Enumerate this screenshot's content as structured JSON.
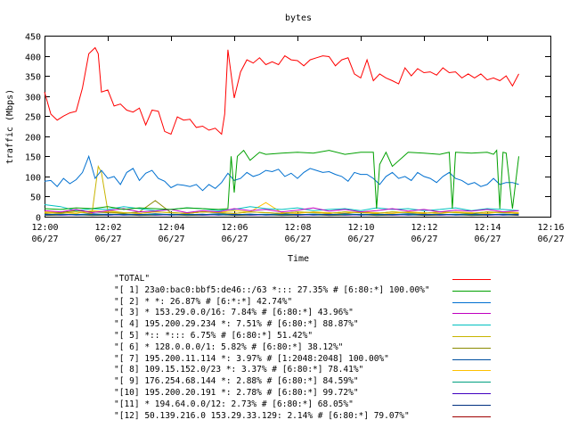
{
  "chart_data": {
    "type": "line",
    "title": "bytes",
    "xlabel": "Time",
    "ylabel": "traffic (Mbps)",
    "ylim": [
      0,
      450
    ],
    "yticks": [
      0,
      50,
      100,
      150,
      200,
      250,
      300,
      350,
      400,
      450
    ],
    "xlim": [
      0,
      16
    ],
    "xticks": [
      {
        "value": 0,
        "time": "12:00",
        "date": "06/27"
      },
      {
        "value": 2,
        "time": "12:02",
        "date": "06/27"
      },
      {
        "value": 4,
        "time": "12:04",
        "date": "06/27"
      },
      {
        "value": 6,
        "time": "12:06",
        "date": "06/27"
      },
      {
        "value": 8,
        "time": "12:08",
        "date": "06/27"
      },
      {
        "value": 10,
        "time": "12:10",
        "date": "06/27"
      },
      {
        "value": 12,
        "time": "12:12",
        "date": "06/27"
      },
      {
        "value": 14,
        "time": "12:14",
        "date": "06/27"
      },
      {
        "value": 16,
        "time": "12:16",
        "date": "06/27"
      }
    ],
    "grid": false,
    "legend_position": "bottom",
    "series": [
      {
        "name": "\"TOTAL\"",
        "color": "#ff0000",
        "x": [
          0,
          0.2,
          0.4,
          0.6,
          0.8,
          1.0,
          1.2,
          1.4,
          1.6,
          1.7,
          1.8,
          2.0,
          2.2,
          2.4,
          2.6,
          2.8,
          3.0,
          3.2,
          3.4,
          3.6,
          3.8,
          4.0,
          4.2,
          4.4,
          4.6,
          4.8,
          5.0,
          5.2,
          5.4,
          5.6,
          5.7,
          5.8,
          6.0,
          6.2,
          6.4,
          6.6,
          6.8,
          7.0,
          7.2,
          7.4,
          7.6,
          7.8,
          8.0,
          8.2,
          8.4,
          8.6,
          8.8,
          9.0,
          9.2,
          9.4,
          9.6,
          9.8,
          10.0,
          10.2,
          10.4,
          10.6,
          10.8,
          11.0,
          11.2,
          11.4,
          11.6,
          11.8,
          12.0,
          12.2,
          12.4,
          12.6,
          12.8,
          13.0,
          13.2,
          13.4,
          13.6,
          13.8,
          14.0,
          14.2,
          14.4,
          14.6,
          14.8,
          15.0
        ],
        "values": [
          310,
          255,
          240,
          250,
          258,
          262,
          320,
          405,
          420,
          405,
          310,
          315,
          275,
          280,
          265,
          260,
          270,
          228,
          265,
          262,
          212,
          205,
          248,
          240,
          242,
          222,
          225,
          215,
          220,
          205,
          255,
          415,
          295,
          360,
          390,
          382,
          395,
          378,
          385,
          378,
          400,
          390,
          388,
          375,
          390,
          395,
          400,
          398,
          375,
          390,
          395,
          355,
          345,
          390,
          338,
          355,
          345,
          338,
          330,
          370,
          350,
          368,
          358,
          360,
          352,
          370,
          358,
          360,
          345,
          355,
          345,
          355,
          340,
          345,
          338,
          350,
          325,
          355
        ]
      },
      {
        "name": "\"[ 1] 23a0:bac0:bbf5:de46::/63 *::: 27.35% # [6:80:*] 100.00%\"",
        "color": "#00a000",
        "x": [
          0,
          0.5,
          1,
          1.5,
          2,
          2.5,
          3,
          3.5,
          4,
          4.5,
          5,
          5.5,
          5.8,
          5.9,
          6.0,
          6.1,
          6.3,
          6.5,
          6.8,
          7,
          7.5,
          8,
          8.5,
          9,
          9.5,
          10,
          10.4,
          10.5,
          10.6,
          10.8,
          11,
          11.5,
          12,
          12.5,
          12.8,
          12.9,
          13.0,
          13.5,
          14,
          14.2,
          14.3,
          14.4,
          14.5,
          14.6,
          14.8,
          15
        ],
        "values": [
          20,
          18,
          22,
          20,
          25,
          18,
          22,
          20,
          18,
          22,
          20,
          18,
          20,
          150,
          60,
          150,
          165,
          140,
          160,
          155,
          158,
          160,
          158,
          165,
          155,
          160,
          160,
          20,
          130,
          160,
          125,
          160,
          158,
          155,
          160,
          20,
          160,
          158,
          160,
          155,
          165,
          20,
          160,
          158,
          20,
          150
        ]
      },
      {
        "name": "\"[ 2] * *: 26.87% # [6:*:*] 42.74%\"",
        "color": "#0070d0",
        "x": [
          0,
          0.2,
          0.4,
          0.6,
          0.8,
          1.0,
          1.2,
          1.4,
          1.6,
          1.8,
          2.0,
          2.2,
          2.4,
          2.6,
          2.8,
          3.0,
          3.2,
          3.4,
          3.6,
          3.8,
          4.0,
          4.2,
          4.4,
          4.6,
          4.8,
          5.0,
          5.2,
          5.4,
          5.6,
          5.8,
          6.0,
          6.2,
          6.4,
          6.6,
          6.8,
          7.0,
          7.2,
          7.4,
          7.6,
          7.8,
          8.0,
          8.2,
          8.4,
          8.6,
          8.8,
          9.0,
          9.2,
          9.4,
          9.6,
          9.8,
          10.0,
          10.2,
          10.4,
          10.6,
          10.8,
          11.0,
          11.2,
          11.4,
          11.6,
          11.8,
          12.0,
          12.2,
          12.4,
          12.6,
          12.8,
          13.0,
          13.2,
          13.4,
          13.6,
          13.8,
          14.0,
          14.2,
          14.4,
          14.6,
          14.8,
          15.0
        ],
        "values": [
          88,
          90,
          75,
          95,
          82,
          92,
          110,
          150,
          95,
          115,
          95,
          100,
          80,
          110,
          120,
          90,
          108,
          115,
          95,
          88,
          72,
          80,
          78,
          75,
          80,
          65,
          80,
          70,
          85,
          108,
          90,
          95,
          110,
          100,
          105,
          115,
          112,
          118,
          100,
          108,
          95,
          110,
          120,
          115,
          110,
          112,
          105,
          100,
          88,
          110,
          105,
          105,
          95,
          80,
          100,
          110,
          95,
          100,
          90,
          110,
          100,
          95,
          85,
          100,
          110,
          95,
          90,
          80,
          85,
          75,
          80,
          95,
          80,
          85,
          85,
          80
        ]
      },
      {
        "name": "\"[ 3] * 153.29.0.0/16: 7.84% # [6:80:*] 43.96%\"",
        "color": "#c000c0",
        "x": [
          0,
          0.5,
          1,
          1.5,
          2,
          2.5,
          3,
          3.5,
          4,
          4.5,
          5,
          5.5,
          6,
          6.5,
          7,
          7.5,
          8,
          8.5,
          9,
          9.5,
          10,
          10.5,
          11,
          11.5,
          12,
          12.5,
          13,
          13.5,
          14,
          14.5,
          15
        ],
        "values": [
          15,
          12,
          18,
          10,
          15,
          20,
          12,
          14,
          18,
          10,
          15,
          12,
          20,
          15,
          18,
          12,
          16,
          22,
          14,
          18,
          12,
          15,
          20,
          14,
          18,
          12,
          16,
          14,
          18,
          12,
          15
        ]
      },
      {
        "name": "\"[ 4] 195.200.29.234 *: 7.51% # [6:80:*] 88.87%\"",
        "color": "#00c0c0",
        "x": [
          0,
          0.5,
          1,
          1.5,
          2,
          2.5,
          3,
          3.5,
          4,
          4.5,
          5,
          5.5,
          6,
          6.5,
          7,
          7.5,
          8,
          8.5,
          9,
          9.5,
          10,
          10.5,
          11,
          11.5,
          12,
          12.5,
          13,
          13.5,
          14,
          14.5,
          15
        ],
        "values": [
          30,
          25,
          15,
          20,
          18,
          25,
          20,
          15,
          18,
          22,
          20,
          15,
          18,
          25,
          20,
          18,
          22,
          15,
          18,
          20,
          15,
          22,
          18,
          20,
          15,
          18,
          22,
          15,
          20,
          18,
          15
        ]
      },
      {
        "name": "\"[ 5] *:: *::: 6.75% # [6:80:*] 51.42%\"",
        "color": "#c8b400",
        "x": [
          0,
          0.5,
          1,
          1.5,
          1.7,
          1.8,
          2,
          2.5,
          3,
          3.5,
          4,
          4.5,
          5,
          5.5,
          6,
          6.5,
          7,
          7.5,
          8,
          8.5,
          9,
          9.5,
          10,
          10.5,
          11,
          11.5,
          12,
          12.5,
          13,
          13.5,
          14,
          14.5,
          15
        ],
        "values": [
          10,
          8,
          12,
          8,
          125,
          110,
          15,
          10,
          8,
          12,
          10,
          8,
          12,
          10,
          8,
          12,
          10,
          8,
          12,
          10,
          8,
          12,
          10,
          8,
          12,
          10,
          8,
          12,
          10,
          8,
          12,
          10,
          8
        ]
      },
      {
        "name": "\"[ 6] * 128.0.0.0/1: 5.82% # [6:80:*] 38.12%\"",
        "color": "#8a8a00",
        "x": [
          0,
          0.5,
          1,
          1.5,
          2,
          2.5,
          3,
          3.5,
          4,
          4.5,
          5,
          5.5,
          6,
          6.5,
          7,
          7.5,
          8,
          8.5,
          9,
          9.5,
          10,
          10.5,
          11,
          11.5,
          12,
          12.5,
          13,
          13.5,
          14,
          14.5,
          15
        ],
        "values": [
          8,
          10,
          15,
          12,
          10,
          8,
          12,
          40,
          10,
          8,
          12,
          10,
          8,
          12,
          10,
          8,
          12,
          10,
          8,
          12,
          10,
          8,
          12,
          10,
          8,
          12,
          10,
          8,
          12,
          10,
          8
        ]
      },
      {
        "name": "\"[ 7] 195.200.11.114 *: 3.97% # [1:2048:2048] 100.00%\"",
        "color": "#0050a0",
        "x": [
          0,
          0.5,
          1,
          1.5,
          2,
          2.5,
          3,
          3.5,
          4,
          4.5,
          5,
          5.5,
          6,
          6.5,
          7,
          7.5,
          8,
          8.5,
          9,
          9.5,
          10,
          10.5,
          11,
          11.5,
          12,
          12.5,
          13,
          13.5,
          14,
          14.5,
          15
        ],
        "values": [
          5,
          6,
          5,
          7,
          5,
          6,
          5,
          7,
          5,
          6,
          5,
          7,
          5,
          6,
          5,
          7,
          5,
          6,
          5,
          7,
          5,
          6,
          5,
          7,
          5,
          6,
          5,
          7,
          5,
          6,
          5
        ]
      },
      {
        "name": "\"[ 8] 109.15.152.0/23 *: 3.37% # [6:80:*] 78.41%\"",
        "color": "#ffc000",
        "x": [
          0,
          0.5,
          1,
          1.5,
          2,
          2.5,
          3,
          3.5,
          4,
          4.5,
          5,
          5.5,
          6,
          6.5,
          7,
          7.5,
          8,
          8.5,
          9,
          9.5,
          10,
          10.5,
          11,
          11.5,
          12,
          12.5,
          13,
          13.5,
          14,
          14.5,
          15
        ],
        "values": [
          12,
          10,
          8,
          15,
          12,
          10,
          8,
          12,
          10,
          8,
          12,
          10,
          15,
          12,
          35,
          10,
          8,
          12,
          10,
          8,
          12,
          10,
          8,
          12,
          10,
          8,
          12,
          10,
          8,
          12,
          10
        ]
      },
      {
        "name": "\"[ 9] 176.254.68.144 *: 2.88% # [6:80:*] 84.59%\"",
        "color": "#00a080",
        "x": [
          0,
          0.5,
          1,
          1.5,
          2,
          2.5,
          3,
          3.5,
          4,
          4.5,
          5,
          5.5,
          6,
          6.5,
          7,
          7.5,
          8,
          8.5,
          9,
          9.5,
          10,
          10.5,
          11,
          11.5,
          12,
          12.5,
          13,
          13.5,
          14,
          14.5,
          15
        ],
        "values": [
          4,
          5,
          6,
          4,
          5,
          6,
          4,
          5,
          6,
          4,
          5,
          6,
          4,
          5,
          6,
          4,
          5,
          6,
          4,
          5,
          6,
          4,
          5,
          6,
          4,
          5,
          6,
          4,
          5,
          6,
          4
        ]
      },
      {
        "name": "\"[10] 195.200.20.191 *: 2.78% # [6:80:*] 99.72%\"",
        "color": "#4000c0",
        "x": [
          0,
          0.5,
          1,
          1.5,
          2,
          2.5,
          3,
          3.5,
          4,
          4.5,
          5,
          5.5,
          6,
          6.5,
          7,
          7.5,
          8,
          8.5,
          9,
          9.5,
          10,
          10.5,
          11,
          11.5,
          12,
          12.5,
          13,
          13.5,
          14,
          14.5,
          15
        ],
        "values": [
          6,
          4,
          5,
          6,
          4,
          5,
          6,
          4,
          5,
          6,
          4,
          5,
          6,
          4,
          5,
          6,
          4,
          5,
          6,
          4,
          5,
          6,
          4,
          5,
          6,
          4,
          5,
          6,
          4,
          5,
          6
        ]
      },
      {
        "name": "\"[11] * 194.64.0.0/12: 2.73% # [6:80:*] 68.05%\"",
        "color": "#003080",
        "x": [
          0,
          0.5,
          1,
          1.5,
          2,
          2.5,
          3,
          3.5,
          4,
          4.5,
          5,
          5.5,
          6,
          6.5,
          7,
          7.5,
          8,
          8.5,
          9,
          9.5,
          10,
          10.5,
          11,
          11.5,
          12,
          12.5,
          13,
          13.5,
          14,
          14.5,
          15
        ],
        "values": [
          5,
          6,
          4,
          5,
          6,
          4,
          5,
          6,
          4,
          5,
          6,
          4,
          5,
          6,
          4,
          5,
          6,
          4,
          5,
          6,
          4,
          5,
          6,
          4,
          5,
          6,
          4,
          5,
          6,
          4,
          5
        ]
      },
      {
        "name": "\"[12] 50.139.216.0 153.29.33.129: 2.14% # [6:80:*] 79.07%\"",
        "color": "#a00000",
        "x": [
          0,
          0.5,
          1,
          1.5,
          2,
          2.5,
          3,
          3.5,
          4,
          4.5,
          5,
          5.5,
          6,
          6.5,
          7,
          7.5,
          8,
          8.5,
          9,
          9.5,
          10,
          10.5,
          11,
          11.5,
          12,
          12.5,
          13,
          13.5,
          14,
          14.5,
          15
        ],
        "values": [
          3,
          4,
          5,
          3,
          4,
          5,
          3,
          4,
          5,
          3,
          4,
          5,
          3,
          4,
          5,
          3,
          4,
          5,
          3,
          4,
          5,
          3,
          4,
          5,
          3,
          4,
          5,
          3,
          4,
          5,
          3
        ]
      }
    ]
  }
}
